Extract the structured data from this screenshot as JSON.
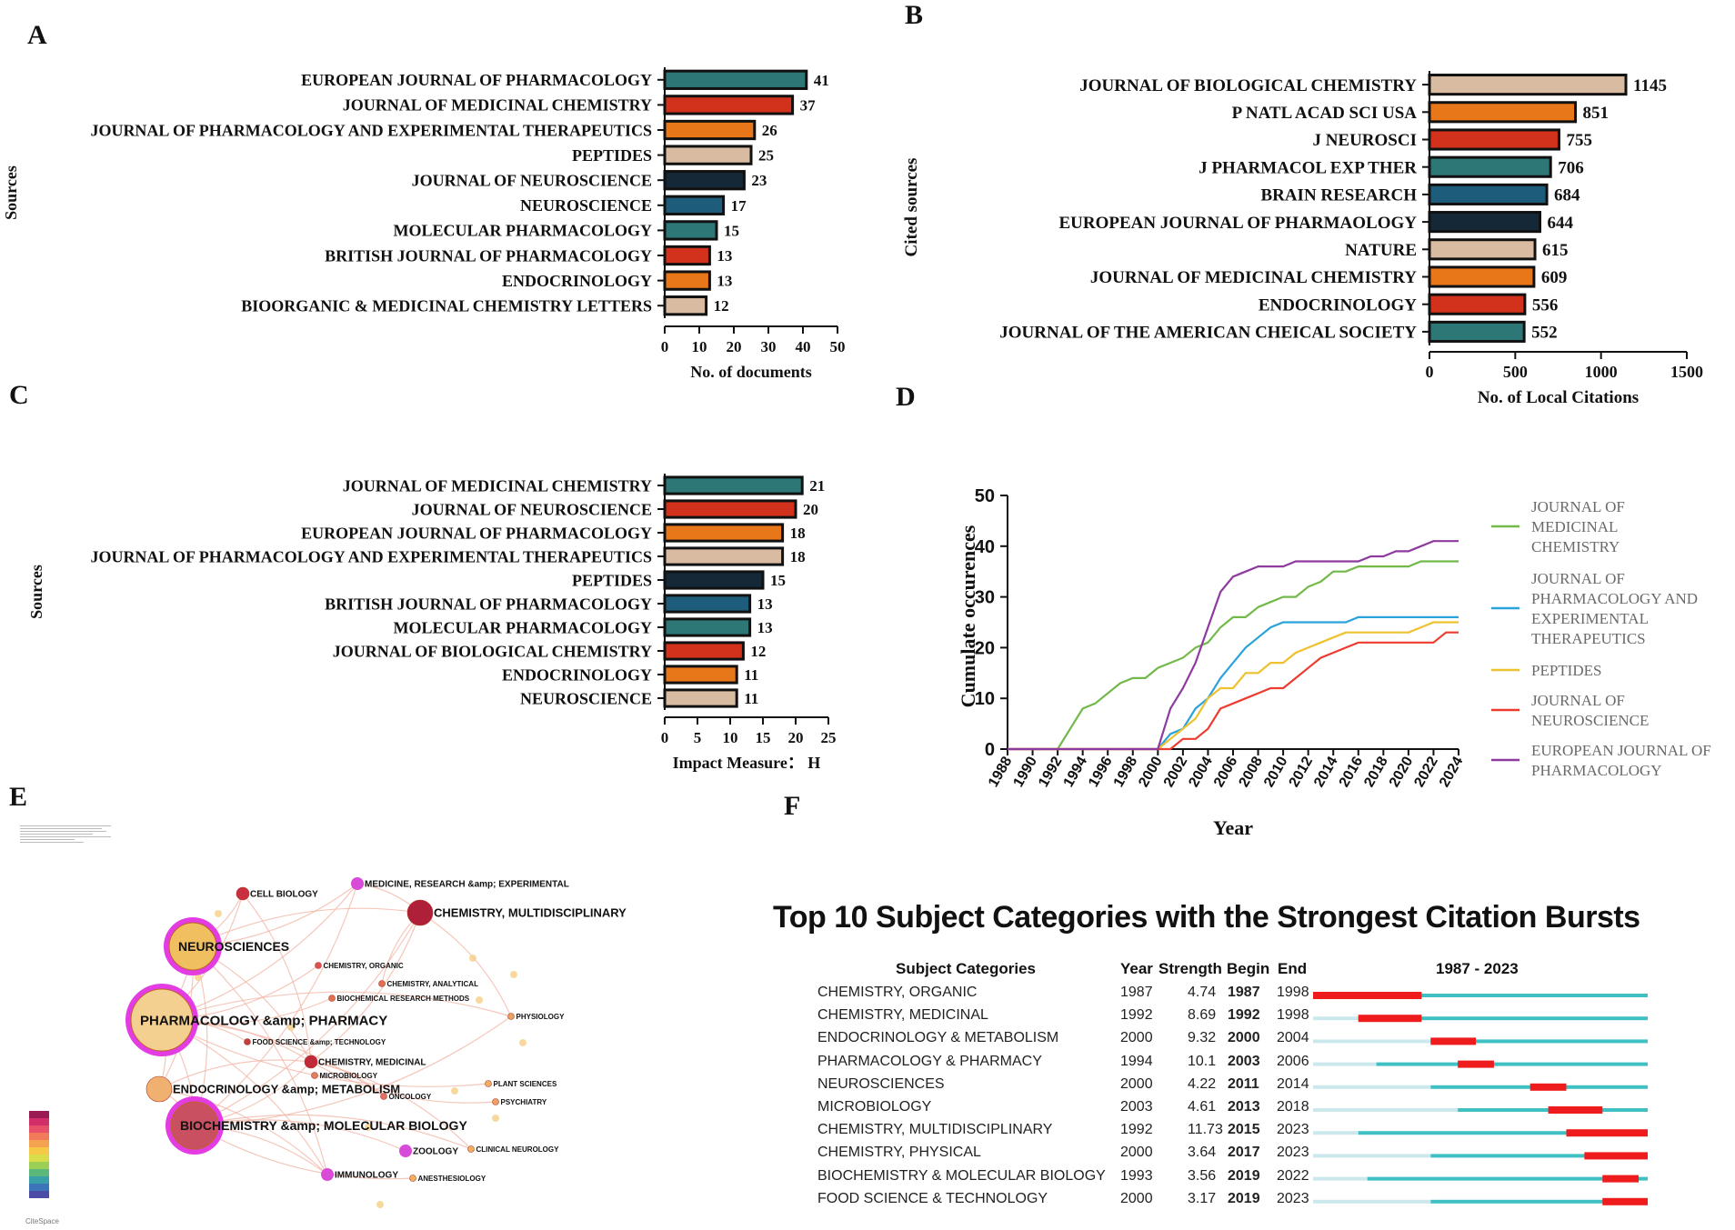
{
  "panels": {
    "A": "A",
    "B": "B",
    "C": "C",
    "D": "D",
    "E": "E",
    "F": "F"
  },
  "colors": {
    "teal": "#2e7777",
    "red": "#d2311b",
    "orange": "#e8771a",
    "tan": "#d8bba0",
    "navy": "#142838",
    "blue": "#1e5c7c"
  },
  "chart_data": [
    {
      "id": "A",
      "type": "bar",
      "orientation": "horizontal",
      "ylabel": "Sources",
      "xlabel": "No. of documents",
      "xlim": [
        0,
        50
      ],
      "xticks": [
        0,
        10,
        20,
        30,
        40,
        50
      ],
      "categories": [
        "EUROPEAN JOURNAL OF PHARMACOLOGY",
        "JOURNAL OF MEDICINAL CHEMISTRY",
        "JOURNAL OF PHARMACOLOGY AND EXPERIMENTAL THERAPEUTICS",
        "PEPTIDES",
        "JOURNAL OF NEUROSCIENCE",
        "NEUROSCIENCE",
        "MOLECULAR PHARMACOLOGY",
        "BRITISH JOURNAL OF PHARMACOLOGY",
        "ENDOCRINOLOGY",
        "BIOORGANIC & MEDICINAL CHEMISTRY LETTERS"
      ],
      "values": [
        41,
        37,
        26,
        25,
        23,
        17,
        15,
        13,
        13,
        12
      ],
      "bar_colors": [
        "teal",
        "red",
        "orange",
        "tan",
        "navy",
        "blue",
        "teal",
        "red",
        "orange",
        "tan"
      ]
    },
    {
      "id": "B",
      "type": "bar",
      "orientation": "horizontal",
      "ylabel": "Cited sources",
      "xlabel": "No. of Local Citations",
      "xlim": [
        0,
        1500
      ],
      "xticks": [
        0,
        500,
        1000,
        1500
      ],
      "categories": [
        "JOURNAL OF BIOLOGICAL CHEMISTRY",
        "P NATL ACAD SCI USA",
        "J NEUROSCI",
        "J PHARMACOL EXP THER",
        "BRAIN RESEARCH",
        "EUROPEAN JOURNAL OF PHARMAOLOGY",
        "NATURE",
        "JOURNAL OF MEDICINAL CHEMISTRY",
        "ENDOCRINOLOGY",
        "JOURNAL OF THE AMERICAN CHEICAL SOCIETY"
      ],
      "values": [
        1145,
        851,
        755,
        706,
        684,
        644,
        615,
        609,
        556,
        552
      ],
      "bar_colors": [
        "tan",
        "orange",
        "red",
        "teal",
        "blue",
        "navy",
        "tan",
        "orange",
        "red",
        "teal"
      ]
    },
    {
      "id": "C",
      "type": "bar",
      "orientation": "horizontal",
      "ylabel": "Sources",
      "xlabel": "Impact Measure： H",
      "xlim": [
        0,
        25
      ],
      "xticks": [
        0,
        5,
        10,
        15,
        20,
        25
      ],
      "categories": [
        "JOURNAL OF MEDICINAL CHEMISTRY",
        "JOURNAL OF NEUROSCIENCE",
        "EUROPEAN JOURNAL OF PHARMACOLOGY",
        "JOURNAL OF PHARMACOLOGY AND EXPERIMENTAL THERAPEUTICS",
        "PEPTIDES",
        "BRITISH JOURNAL OF PHARMACOLOGY",
        "MOLECULAR PHARMACOLOGY",
        "JOURNAL OF BIOLOGICAL CHEMISTRY",
        "ENDOCRINOLOGY",
        "NEUROSCIENCE"
      ],
      "values": [
        21,
        20,
        18,
        18,
        15,
        13,
        13,
        12,
        11,
        11
      ],
      "bar_colors": [
        "teal",
        "red",
        "orange",
        "tan",
        "navy",
        "blue",
        "teal",
        "red",
        "orange",
        "tan"
      ]
    },
    {
      "id": "D",
      "type": "line",
      "ylabel": "Cumulate occurences",
      "xlabel": "Year",
      "ylim": [
        0,
        50
      ],
      "yticks": [
        0,
        10,
        20,
        30,
        40,
        50
      ],
      "xlim": [
        1988,
        2024
      ],
      "xticks": [
        1988,
        1990,
        1992,
        1994,
        1996,
        1998,
        2000,
        2002,
        2004,
        2006,
        2008,
        2010,
        2012,
        2014,
        2016,
        2018,
        2020,
        2022,
        2024
      ],
      "x": [
        1988,
        1989,
        1990,
        1991,
        1992,
        1993,
        1994,
        1995,
        1996,
        1997,
        1998,
        1999,
        2000,
        2001,
        2002,
        2003,
        2004,
        2005,
        2006,
        2007,
        2008,
        2009,
        2010,
        2011,
        2012,
        2013,
        2014,
        2015,
        2016,
        2017,
        2018,
        2019,
        2020,
        2021,
        2022,
        2023,
        2024
      ],
      "series": [
        {
          "name": "JOURNAL OF MEDICINAL CHEMISTRY",
          "color": "#72b94a",
          "values": [
            0,
            0,
            0,
            0,
            0,
            4,
            8,
            9,
            11,
            13,
            14,
            14,
            16,
            17,
            18,
            20,
            21,
            24,
            26,
            26,
            28,
            29,
            30,
            30,
            32,
            33,
            35,
            35,
            36,
            36,
            36,
            36,
            36,
            37,
            37,
            37,
            37
          ]
        },
        {
          "name": "JOURNAL OF PHARMACOLOGY AND EXPERIMENTAL THERAPEUTICS",
          "color": "#2aa3dc",
          "values": [
            0,
            0,
            0,
            0,
            0,
            0,
            0,
            0,
            0,
            0,
            0,
            0,
            0,
            3,
            4,
            8,
            10,
            14,
            17,
            20,
            22,
            24,
            25,
            25,
            25,
            25,
            25,
            25,
            26,
            26,
            26,
            26,
            26,
            26,
            26,
            26,
            26
          ]
        },
        {
          "name": "PEPTIDES",
          "color": "#eec12e",
          "values": [
            0,
            0,
            0,
            0,
            0,
            0,
            0,
            0,
            0,
            0,
            0,
            0,
            0,
            2,
            4,
            6,
            10,
            12,
            12,
            15,
            15,
            17,
            17,
            19,
            20,
            21,
            22,
            23,
            23,
            23,
            23,
            23,
            23,
            24,
            25,
            25,
            25
          ]
        },
        {
          "name": "JOURNAL OF NEUROSCIENCE",
          "color": "#ee3b2f",
          "values": [
            0,
            0,
            0,
            0,
            0,
            0,
            0,
            0,
            0,
            0,
            0,
            0,
            0,
            0,
            2,
            2,
            4,
            8,
            9,
            10,
            11,
            12,
            12,
            14,
            16,
            18,
            19,
            20,
            21,
            21,
            21,
            21,
            21,
            21,
            21,
            23,
            23
          ]
        },
        {
          "name": "EUROPEAN JOURNAL OF PHARMACOLOGY",
          "color": "#8e3a9f",
          "values": [
            0,
            0,
            0,
            0,
            0,
            0,
            0,
            0,
            0,
            0,
            0,
            0,
            0,
            8,
            12,
            17,
            24,
            31,
            34,
            35,
            36,
            36,
            36,
            37,
            37,
            37,
            37,
            37,
            37,
            38,
            38,
            39,
            39,
            40,
            41,
            41,
            41
          ]
        }
      ],
      "legend_lines": [
        [
          "JOURNAL OF",
          "MEDICINAL",
          "CHEMISTRY"
        ],
        [
          "JOURNAL OF",
          "PHARMACOLOGY AND",
          "EXPERIMENTAL",
          "THERAPEUTICS"
        ],
        [
          "PEPTIDES"
        ],
        [
          "JOURNAL OF",
          "NEUROSCIENCE"
        ],
        [
          "EUROPEAN JOURNAL OF",
          "PHARMACOLOGY"
        ]
      ]
    }
  ],
  "network": {
    "nodes": [
      {
        "label": "CELL BIOLOGY",
        "color": "#c83040",
        "size": "small"
      },
      {
        "label": "MEDICINE, RESEARCH &amp; EXPERIMENTAL",
        "color": "#d84ad8",
        "size": "small"
      },
      {
        "label": "CHEMISTRY, MULTIDISCIPLINARY",
        "color": "#b01f3a",
        "size": "medium"
      },
      {
        "label": "NEUROSCIENCES",
        "color": "#f0c060",
        "size": "large"
      },
      {
        "label": "CHEMISTRY, ORGANIC",
        "color": "#e05050",
        "size": "tiny"
      },
      {
        "label": "CHEMISTRY, ANALYTICAL",
        "color": "#e07050",
        "size": "tiny"
      },
      {
        "label": "BIOCHEMICAL RESEARCH METHODS",
        "color": "#e07050",
        "size": "tiny"
      },
      {
        "label": "PHYSIOLOGY",
        "color": "#e8a060",
        "size": "tiny"
      },
      {
        "label": "PHARMACOLOGY &amp; PHARMACY",
        "color": "#f4d090",
        "size": "xlarge"
      },
      {
        "label": "FOOD SCIENCE &amp; TECHNOLOGY",
        "color": "#c04040",
        "size": "tiny"
      },
      {
        "label": "CHEMISTRY, MEDICINAL",
        "color": "#c02a3a",
        "size": "small"
      },
      {
        "label": "MICROBIOLOGY",
        "color": "#e08060",
        "size": "tiny"
      },
      {
        "label": "ENDOCRINOLOGY &amp; METABOLISM",
        "color": "#f0b070",
        "size": "medium"
      },
      {
        "label": "ONCOLOGY",
        "color": "#e07060",
        "size": "tiny"
      },
      {
        "label": "PLANT SCIENCES",
        "color": "#f0b060",
        "size": "tiny"
      },
      {
        "label": "PSYCHIATRY",
        "color": "#f0a060",
        "size": "tiny"
      },
      {
        "label": "BIOCHEMISTRY &amp; MOLECULAR BIOLOGY",
        "color": "#c85060",
        "size": "large"
      },
      {
        "label": "ZOOLOGY",
        "color": "#d84ad8",
        "size": "small"
      },
      {
        "label": "CLINICAL NEUROLOGY",
        "color": "#f0b060",
        "size": "tiny"
      },
      {
        "label": "IMMUNOLOGY",
        "color": "#d84ad8",
        "size": "small"
      },
      {
        "label": "ANESTHESIOLOGY",
        "color": "#f0b060",
        "size": "tiny"
      }
    ],
    "watermark": "CiteSpace"
  },
  "bursts": {
    "title": "Top 10 Subject Categories with the Strongest Citation Bursts",
    "headers": {
      "category": "Subject Categories",
      "year": "Year",
      "strength": "Strength",
      "begin": "Begin",
      "end": "End",
      "range": "1987 - 2023"
    },
    "range_start": 1987,
    "range_end": 2023,
    "rows": [
      {
        "category": "CHEMISTRY, ORGANIC",
        "year": "1987",
        "strength": "4.74",
        "begin": "1987",
        "end": "1998"
      },
      {
        "category": "CHEMISTRY, MEDICINAL",
        "year": "1992",
        "strength": "8.69",
        "begin": "1992",
        "end": "1998"
      },
      {
        "category": "ENDOCRINOLOGY & METABOLISM",
        "year": "2000",
        "strength": "9.32",
        "begin": "2000",
        "end": "2004"
      },
      {
        "category": "PHARMACOLOGY & PHARMACY",
        "year": "1994",
        "strength": "10.1",
        "begin": "2003",
        "end": "2006"
      },
      {
        "category": "NEUROSCIENCES",
        "year": "2000",
        "strength": "4.22",
        "begin": "2011",
        "end": "2014"
      },
      {
        "category": "MICROBIOLOGY",
        "year": "2003",
        "strength": "4.61",
        "begin": "2013",
        "end": "2018"
      },
      {
        "category": "CHEMISTRY, MULTIDISCIPLINARY",
        "year": "1992",
        "strength": "11.73",
        "begin": "2015",
        "end": "2023"
      },
      {
        "category": "CHEMISTRY, PHYSICAL",
        "year": "2000",
        "strength": "3.64",
        "begin": "2017",
        "end": "2023"
      },
      {
        "category": "BIOCHEMISTRY & MOLECULAR BIOLOGY",
        "year": "1993",
        "strength": "3.56",
        "begin": "2019",
        "end": "2022"
      },
      {
        "category": "FOOD SCIENCE & TECHNOLOGY",
        "year": "2000",
        "strength": "3.17",
        "begin": "2019",
        "end": "2023"
      }
    ]
  }
}
